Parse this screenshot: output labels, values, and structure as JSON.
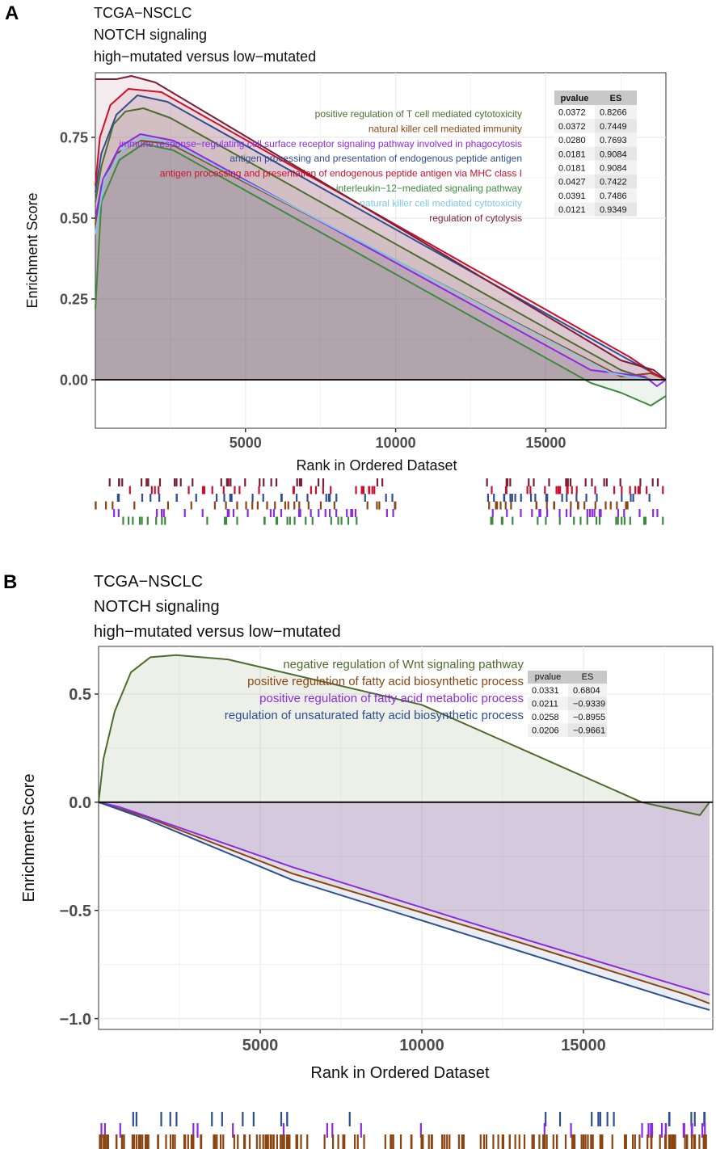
{
  "colors": {
    "dark_red": "#7b1f37",
    "red": "#c8102e",
    "olive": "#4d6b2b",
    "purple": "#8a2be2",
    "navy": "#2f4f8f",
    "green": "#3c8a3c",
    "light_blue": "#7ec8e3",
    "brown": "#8b4513"
  },
  "chart_data": [
    {
      "panel": "A",
      "type": "line",
      "title_lines": [
        "TCGA−NSCLC",
        "NOTCH signaling",
        "high−mutated versus low−mutated"
      ],
      "xlabel": "Rank in Ordered Dataset",
      "ylabel": "Enrichment Score",
      "xlim": [
        0,
        19000
      ],
      "ylim": [
        -0.15,
        0.95
      ],
      "xticks": [
        "5000",
        "10000",
        "15000"
      ],
      "xtick_values": [
        5000,
        10000,
        15000
      ],
      "yticks": [
        "0.00",
        "0.25",
        "0.50",
        "0.75"
      ],
      "ytick_values": [
        0,
        0.25,
        0.5,
        0.75
      ],
      "table_header": [
        "pvalue",
        "ES"
      ],
      "series": [
        {
          "name": "positive regulation of T cell mediated cytotoxicity",
          "color": "#4d6b2b",
          "pvalue": "0.0372",
          "es": "0.8266",
          "points": [
            [
              0,
              0.55
            ],
            [
              200,
              0.66
            ],
            [
              600,
              0.79
            ],
            [
              1000,
              0.83
            ],
            [
              1600,
              0.84
            ],
            [
              2500,
              0.81
            ],
            [
              17500,
              0.03
            ],
            [
              18500,
              0.0
            ],
            [
              19000,
              0.0
            ]
          ]
        },
        {
          "name": "natural killer cell mediated immunity",
          "color": "#8b4513",
          "pvalue": "0.0372",
          "es": "0.7449",
          "points": [
            [
              0,
              0.48
            ],
            [
              200,
              0.6
            ],
            [
              700,
              0.7
            ],
            [
              1500,
              0.74
            ],
            [
              2500,
              0.73
            ],
            [
              17500,
              0.01
            ],
            [
              18500,
              0.02
            ],
            [
              19000,
              0.0
            ]
          ]
        },
        {
          "name": "immune response−regulating cell surface receptor signaling pathway involved in phagocytosis",
          "color": "#8a2be2",
          "pvalue": "0.0280",
          "es": "0.7693",
          "points": [
            [
              0,
              0.5
            ],
            [
              250,
              0.62
            ],
            [
              800,
              0.72
            ],
            [
              1500,
              0.76
            ],
            [
              2600,
              0.74
            ],
            [
              16500,
              0.03
            ],
            [
              18300,
              0.01
            ],
            [
              18700,
              -0.02
            ],
            [
              19000,
              0.0
            ]
          ]
        },
        {
          "name": "antigen processing and presentation of endogenous peptide antigen",
          "color": "#2f4f8f",
          "pvalue": "0.0181",
          "es": "0.9084",
          "points": [
            [
              0,
              0.58
            ],
            [
              200,
              0.7
            ],
            [
              700,
              0.82
            ],
            [
              1400,
              0.88
            ],
            [
              2400,
              0.86
            ],
            [
              17800,
              0.06
            ],
            [
              18600,
              0.02
            ],
            [
              19000,
              0.0
            ]
          ]
        },
        {
          "name": "antigen processing and presentation of endogenous peptide antigen via MHC class I",
          "color": "#c8102e",
          "pvalue": "0.0181",
          "es": "0.9084",
          "points": [
            [
              0,
              0.6
            ],
            [
              150,
              0.75
            ],
            [
              500,
              0.85
            ],
            [
              1100,
              0.9
            ],
            [
              2200,
              0.89
            ],
            [
              17800,
              0.07
            ],
            [
              18600,
              0.02
            ],
            [
              19000,
              0.0
            ]
          ]
        },
        {
          "name": "interleukin−12−mediated signaling pathway",
          "color": "#3c8a3c",
          "pvalue": "0.0427",
          "es": "0.7422",
          "points": [
            [
              0,
              0.22
            ],
            [
              200,
              0.55
            ],
            [
              800,
              0.68
            ],
            [
              1600,
              0.73
            ],
            [
              2600,
              0.71
            ],
            [
              16500,
              -0.01
            ],
            [
              17500,
              -0.04
            ],
            [
              18500,
              -0.08
            ],
            [
              19000,
              -0.05
            ]
          ]
        },
        {
          "name": "natural killer cell mediated cytotoxicity",
          "color": "#7ec8e3",
          "pvalue": "0.0391",
          "es": "0.7486",
          "points": [
            [
              0,
              0.45
            ],
            [
              300,
              0.62
            ],
            [
              900,
              0.71
            ],
            [
              1600,
              0.75
            ],
            [
              2600,
              0.73
            ],
            [
              17200,
              0.02
            ],
            [
              18400,
              0.0
            ],
            [
              19000,
              0.0
            ]
          ]
        },
        {
          "name": "regulation of cytolysis",
          "color": "#7b1f37",
          "pvalue": "0.0121",
          "es": "0.9349",
          "points": [
            [
              0,
              0.93
            ],
            [
              700,
              0.93
            ],
            [
              1200,
              0.94
            ],
            [
              2000,
              0.92
            ],
            [
              17500,
              0.06
            ],
            [
              18600,
              0.03
            ],
            [
              19000,
              0.0
            ]
          ]
        }
      ]
    },
    {
      "panel": "B",
      "type": "line",
      "title_lines": [
        "TCGA−NSCLC",
        "NOTCH signaling",
        "high−mutated versus low−mutated"
      ],
      "xlabel": "Rank in Ordered Dataset",
      "ylabel": "Enrichment Score",
      "xlim": [
        0,
        19000
      ],
      "ylim": [
        -1.05,
        0.72
      ],
      "xticks": [
        "5000",
        "10000",
        "15000"
      ],
      "xtick_values": [
        5000,
        10000,
        15000
      ],
      "yticks": [
        "0.5",
        "0.0",
        "−0.5",
        "−1.0"
      ],
      "ytick_values": [
        0.5,
        0,
        -0.5,
        -1.0
      ],
      "table_header": [
        "pvalue",
        "ES"
      ],
      "series": [
        {
          "name": "negative regulation of Wnt signaling pathway",
          "color": "#4d6b2b",
          "pvalue": "0.0331",
          "es": "0.6804",
          "points": [
            [
              0,
              0.0
            ],
            [
              150,
              0.2
            ],
            [
              500,
              0.42
            ],
            [
              1000,
              0.6
            ],
            [
              1600,
              0.67
            ],
            [
              2400,
              0.68
            ],
            [
              4000,
              0.66
            ],
            [
              10000,
              0.45
            ],
            [
              16800,
              0.0
            ],
            [
              18000,
              -0.04
            ],
            [
              18600,
              -0.06
            ],
            [
              18900,
              0.0
            ]
          ]
        },
        {
          "name": "positive regulation of fatty acid biosynthetic process",
          "color": "#8b4513",
          "pvalue": "0.0211",
          "es": "−0.9339",
          "points": [
            [
              0,
              0.0
            ],
            [
              1500,
              -0.07
            ],
            [
              6000,
              -0.33
            ],
            [
              12000,
              -0.6
            ],
            [
              18200,
              -0.89
            ],
            [
              18900,
              -0.93
            ]
          ]
        },
        {
          "name": "positive regulation of fatty acid metabolic process",
          "color": "#8a2be2",
          "pvalue": "0.0258",
          "es": "−0.8955",
          "points": [
            [
              0,
              0.0
            ],
            [
              600,
              -0.02
            ],
            [
              1200,
              -0.05
            ],
            [
              6000,
              -0.3
            ],
            [
              12000,
              -0.58
            ],
            [
              18200,
              -0.86
            ],
            [
              18900,
              -0.89
            ]
          ]
        },
        {
          "name": "regulation of unsaturated fatty acid biosynthetic process",
          "color": "#2f4f8f",
          "pvalue": "0.0206",
          "es": "−0.9661",
          "points": [
            [
              0,
              0.0
            ],
            [
              1500,
              -0.08
            ],
            [
              6000,
              -0.36
            ],
            [
              12000,
              -0.64
            ],
            [
              18200,
              -0.93
            ],
            [
              18900,
              -0.96
            ]
          ]
        }
      ]
    }
  ]
}
